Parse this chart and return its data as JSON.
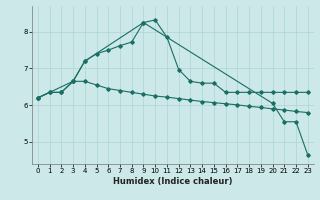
{
  "xlabel": "Humidex (Indice chaleur)",
  "background_color": "#cce8e8",
  "grid_color": "#aad4d4",
  "line_color": "#1a6e64",
  "x_ticks": [
    0,
    1,
    2,
    3,
    4,
    5,
    6,
    7,
    8,
    9,
    10,
    11,
    12,
    13,
    14,
    15,
    16,
    17,
    18,
    19,
    20,
    21,
    22,
    23
  ],
  "y_ticks": [
    5,
    6,
    7,
    8
  ],
  "ylim": [
    4.4,
    8.7
  ],
  "xlim": [
    -0.5,
    23.5
  ],
  "series1_x": [
    0,
    1,
    2,
    3,
    4,
    5,
    6,
    7,
    8,
    9,
    10,
    11,
    12,
    13,
    14,
    15,
    16,
    17,
    18,
    19,
    20,
    21,
    22,
    23
  ],
  "series1_y": [
    6.2,
    6.35,
    6.35,
    6.65,
    6.65,
    6.55,
    6.45,
    6.4,
    6.35,
    6.3,
    6.25,
    6.22,
    6.18,
    6.14,
    6.1,
    6.07,
    6.04,
    6.01,
    5.97,
    5.94,
    5.9,
    5.87,
    5.83,
    5.8
  ],
  "series2_x": [
    0,
    1,
    2,
    3,
    4,
    5,
    6,
    7,
    8,
    9,
    10,
    11,
    12,
    13,
    14,
    15,
    16,
    17,
    18,
    19,
    20,
    21,
    22,
    23
  ],
  "series2_y": [
    6.2,
    6.35,
    6.35,
    6.65,
    7.2,
    7.4,
    7.5,
    7.62,
    7.72,
    8.25,
    8.32,
    7.85,
    6.97,
    6.65,
    6.6,
    6.6,
    6.35,
    6.35,
    6.35,
    6.35,
    6.35,
    6.35,
    6.35,
    6.35
  ],
  "series3_x": [
    0,
    3,
    4,
    9,
    20,
    21,
    22,
    23
  ],
  "series3_y": [
    6.2,
    6.65,
    7.2,
    8.25,
    6.05,
    5.55,
    5.55,
    4.65
  ]
}
